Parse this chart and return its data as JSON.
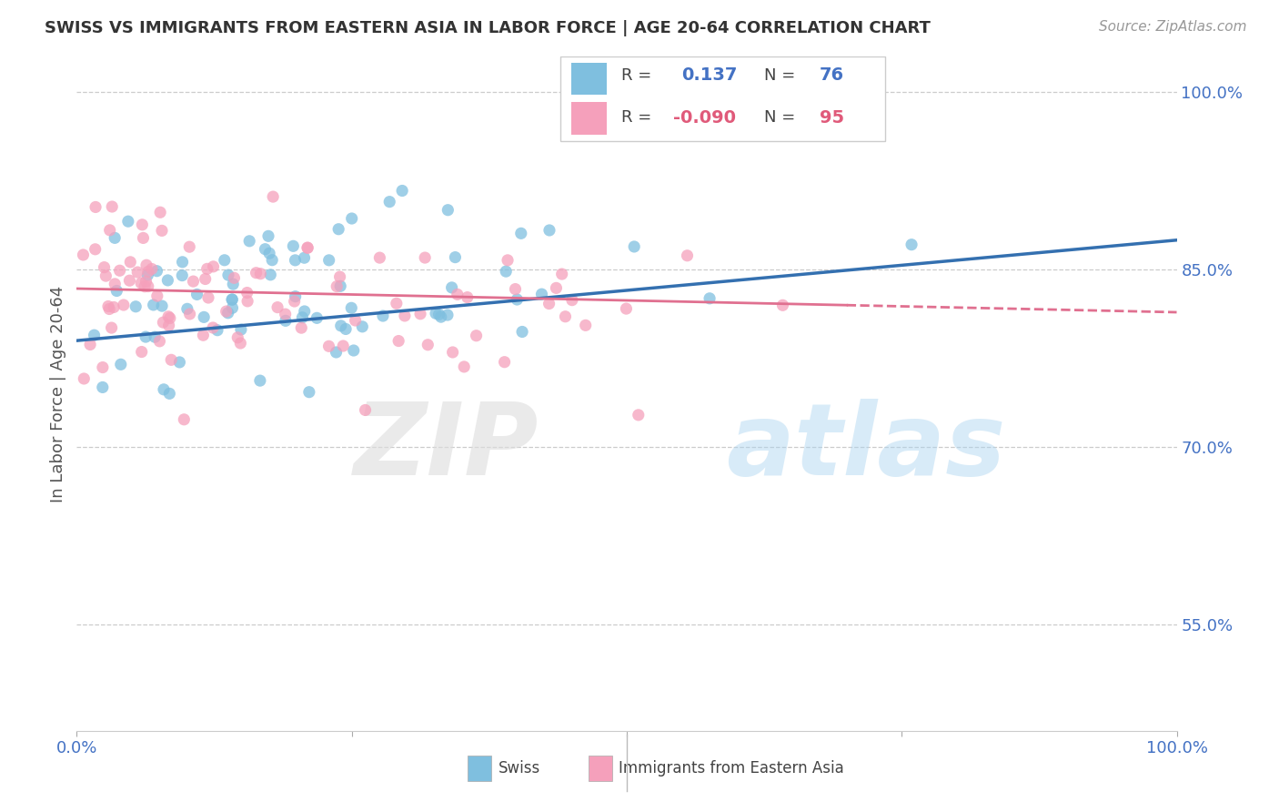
{
  "title": "SWISS VS IMMIGRANTS FROM EASTERN ASIA IN LABOR FORCE | AGE 20-64 CORRELATION CHART",
  "source": "Source: ZipAtlas.com",
  "ylabel": "In Labor Force | Age 20-64",
  "blue_color": "#7fbfdf",
  "pink_color": "#f5a0bb",
  "blue_line_color": "#3470b0",
  "pink_line_color": "#e07090",
  "ytick_vals": [
    0.55,
    0.7,
    0.85,
    1.0
  ],
  "ytick_labels": [
    "55.0%",
    "70.0%",
    "85.0%",
    "100.0%"
  ],
  "xtick_vals": [
    0.0,
    0.25,
    0.5,
    0.75,
    1.0
  ],
  "xtick_labels": [
    "0.0%",
    "",
    "",
    "",
    "100.0%"
  ],
  "xlim": [
    0.0,
    1.0
  ],
  "ylim": [
    0.46,
    1.03
  ],
  "legend_R_blue": "0.137",
  "legend_N_blue": "76",
  "legend_R_pink": "-0.090",
  "legend_N_pink": "95",
  "grid_color": "#cccccc",
  "grid_style": "--"
}
